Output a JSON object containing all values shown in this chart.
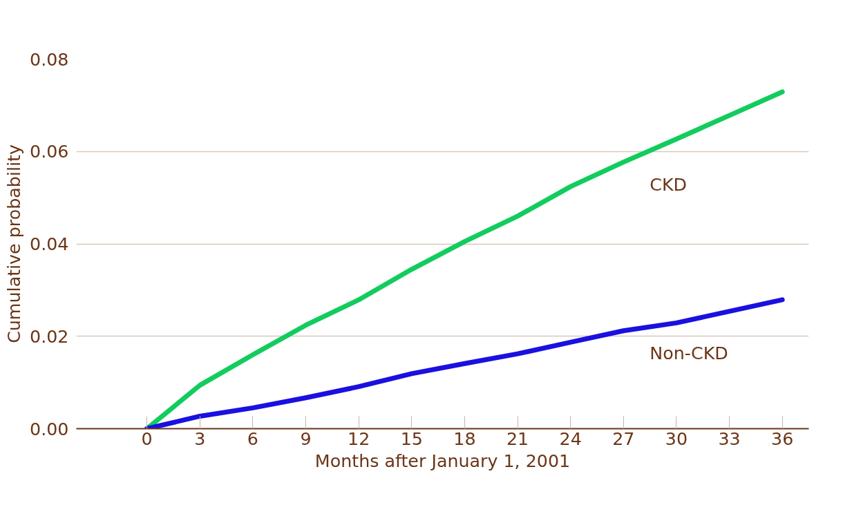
{
  "chart_data": {
    "type": "line",
    "xlabel": "Months after January 1, 2001",
    "ylabel": "Cumulative probability",
    "x": [
      0,
      3,
      6,
      9,
      12,
      15,
      18,
      21,
      24,
      27,
      30,
      33,
      36
    ],
    "series": [
      {
        "name": "CKD",
        "color": "#12cc5e",
        "values": [
          0,
          0.0094,
          0.016,
          0.0224,
          0.0279,
          0.0345,
          0.0405,
          0.046,
          0.0524,
          0.0577,
          0.0627,
          0.0678,
          0.0729
        ]
      },
      {
        "name": "Non-CKD",
        "color": "#1a10e0",
        "values": [
          0,
          0.0027,
          0.0045,
          0.0067,
          0.0091,
          0.0119,
          0.0141,
          0.0162,
          0.0187,
          0.0212,
          0.0229,
          0.0254,
          0.0279
        ]
      }
    ],
    "xlim": [
      -4,
      37.5
    ],
    "xticks": [
      0,
      3,
      6,
      9,
      12,
      15,
      18,
      21,
      24,
      27,
      30,
      33,
      36
    ],
    "ylim": [
      0,
      0.08
    ],
    "yticks": [
      {
        "value": 0,
        "label": "0.00"
      },
      {
        "value": 0.02,
        "label": "0.02"
      },
      {
        "value": 0.04,
        "label": "0.04"
      },
      {
        "value": 0.06,
        "label": "0.06"
      },
      {
        "value": 0.08,
        "label": "0.08"
      }
    ],
    "grid": "y",
    "legend": false,
    "marker": "none",
    "line_style": "solid"
  }
}
